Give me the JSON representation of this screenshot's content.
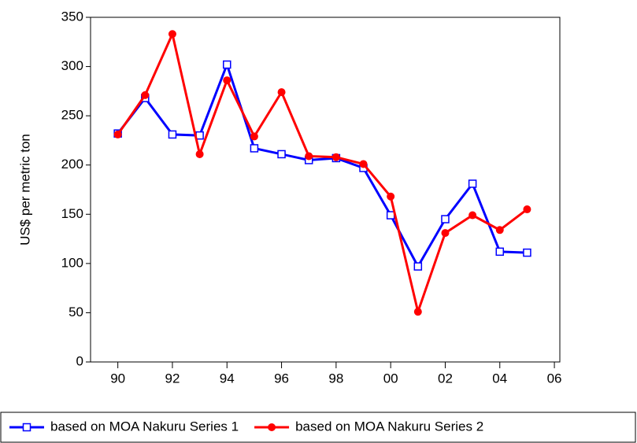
{
  "chart_data": {
    "type": "line",
    "y_label": "US$ per metric ton",
    "x": [
      1990,
      1991,
      1992,
      1993,
      1994,
      1995,
      1996,
      1997,
      1998,
      1999,
      2000,
      2001,
      2002,
      2003,
      2004,
      2005
    ],
    "series": [
      {
        "name": "based on MOA Nakuru Series 1",
        "color": "#0000ff",
        "marker": "square",
        "values": [
          232,
          268,
          231,
          230,
          302,
          217,
          211,
          205,
          207,
          197,
          149,
          97,
          145,
          181,
          112,
          111
        ]
      },
      {
        "name": "based on MOA Nakuru Series 2",
        "color": "#ff0000",
        "marker": "circle",
        "values": [
          231,
          271,
          333,
          211,
          286,
          229,
          274,
          209,
          208,
          201,
          168,
          51,
          131,
          149,
          134,
          155
        ]
      }
    ],
    "xlim": [
      1989,
      2006.2
    ],
    "xticks": [
      {
        "value": 1990,
        "label": "90"
      },
      {
        "value": 1992,
        "label": "92"
      },
      {
        "value": 1994,
        "label": "94"
      },
      {
        "value": 1996,
        "label": "96"
      },
      {
        "value": 1998,
        "label": "98"
      },
      {
        "value": 2000,
        "label": "00"
      },
      {
        "value": 2002,
        "label": "02"
      },
      {
        "value": 2004,
        "label": "04"
      },
      {
        "value": 2006,
        "label": "06"
      }
    ],
    "ylim": [
      0,
      350
    ],
    "yticks": [
      0,
      50,
      100,
      150,
      200,
      250,
      300,
      350
    ],
    "legend": "bottom"
  }
}
